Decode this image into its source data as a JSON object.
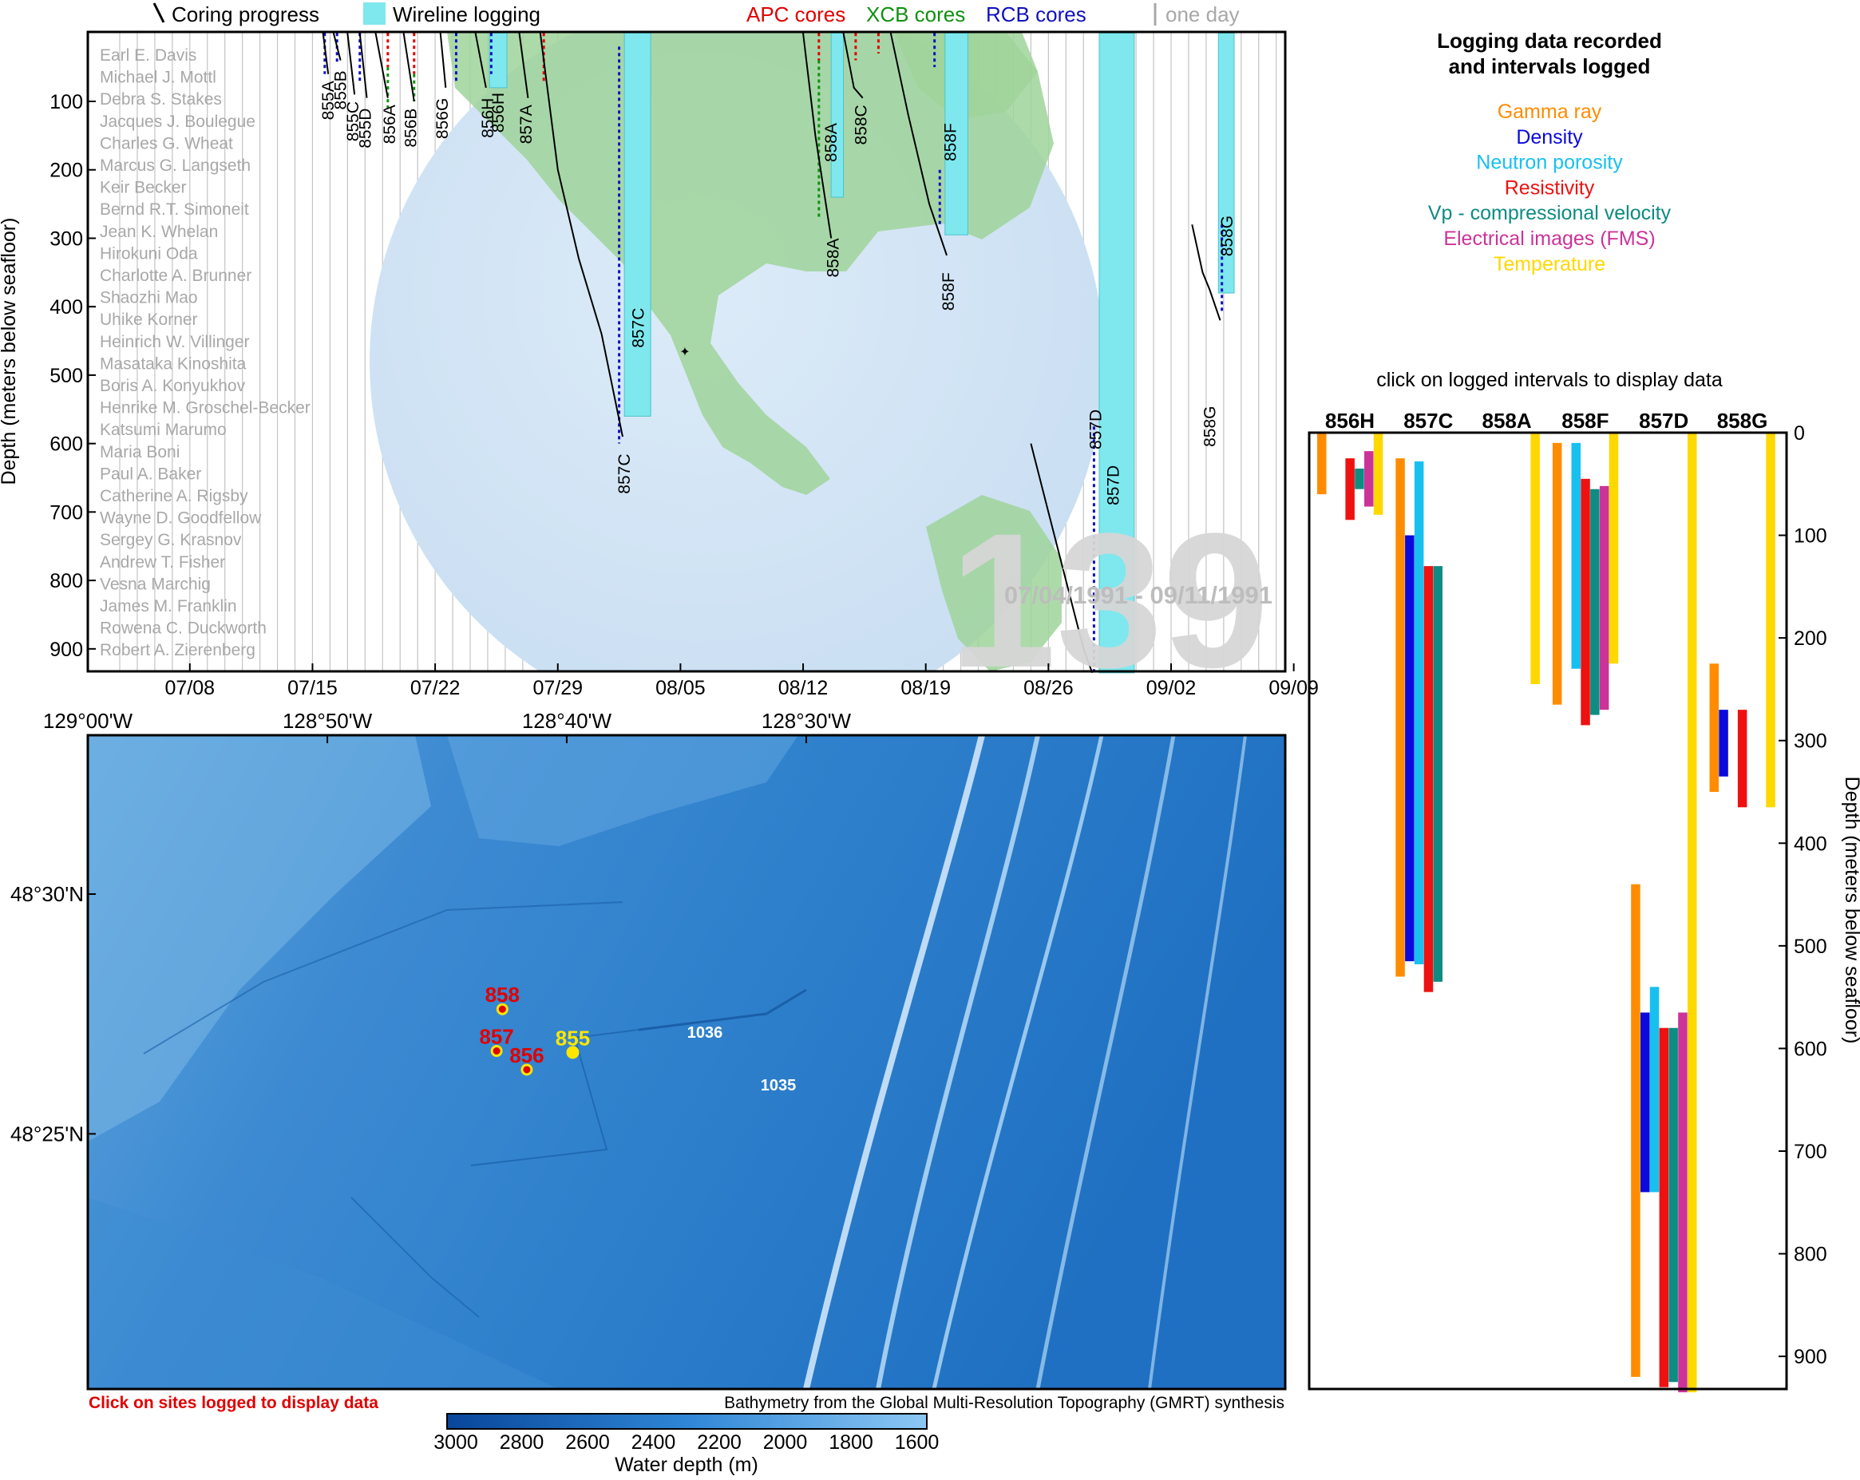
{
  "legend_top": {
    "coring": "Coring progress",
    "wireline": "Wireline logging",
    "apc": "APC cores",
    "xcb": "XCB cores",
    "rcb": "RCB cores",
    "one_day": "one day",
    "colors": {
      "apc": "#e00000",
      "xcb": "#109010",
      "rcb": "#1010c0",
      "wireline": "#7ee8ee",
      "one_day": "#a8a8a8"
    }
  },
  "timeline": {
    "ylabel": "Depth (meters below seafloor)",
    "y_ticks": [
      "100",
      "200",
      "300",
      "400",
      "500",
      "600",
      "700",
      "800",
      "900"
    ],
    "x_ticks": [
      "07/08",
      "07/15",
      "07/22",
      "07/29",
      "08/05",
      "08/12",
      "08/19",
      "08/26",
      "09/02",
      "09/09"
    ],
    "expedition_number": "139",
    "date_range": "07/04/1991 - 09/11/1991",
    "scientists": [
      "Earl E. Davis",
      "Michael J. Mottl",
      "Debra S. Stakes",
      "Jacques J. Boulegue",
      "Charles G. Wheat",
      "Marcus G. Langseth",
      "Keir Becker",
      "Bernd R.T. Simoneit",
      "Jean K. Whelan",
      "Hirokuni Oda",
      "Charlotte A. Brunner",
      "Shaozhi Mao",
      "Uhike Korner",
      "Heinrich W. Villinger",
      "Masataka Kinoshita",
      "Boris A. Konyukhov",
      "Henrike M. Groschel-Becker",
      "Katsumi Marumo",
      "Maria Boni",
      "Paul A. Baker",
      "Catherine A. Rigsby",
      "Wayne D. Goodfellow",
      "Sergey G. Krasnov",
      "Andrew T. Fisher",
      "Vesna Marchig",
      "James M. Franklin",
      "Rowena C. Duckworth",
      "Robert A. Zierenberg"
    ],
    "hole_labels": [
      {
        "name": "855A",
        "day": 11.9,
        "depth": 70
      },
      {
        "name": "855B",
        "day": 12.6,
        "depth": 55
      },
      {
        "name": "855C",
        "day": 13.3,
        "depth": 100
      },
      {
        "name": "855D",
        "day": 14.0,
        "depth": 110
      },
      {
        "name": "856A",
        "day": 15.4,
        "depth": 105
      },
      {
        "name": "856B",
        "day": 16.6,
        "depth": 110
      },
      {
        "name": "856G",
        "day": 18.4,
        "depth": 95
      },
      {
        "name": "856H",
        "day": 21.0,
        "depth": 95
      },
      {
        "name": "857A",
        "day": 23.2,
        "depth": 105
      },
      {
        "name": "857C",
        "day": 28.8,
        "depth": 615
      },
      {
        "name": "858A",
        "day": 40.7,
        "depth": 300
      },
      {
        "name": "858C",
        "day": 42.3,
        "depth": 105
      },
      {
        "name": "858F",
        "day": 47.3,
        "depth": 350
      },
      {
        "name": "857D",
        "day": 55.7,
        "depth": 550
      },
      {
        "name": "858G",
        "day": 62.2,
        "depth": 545
      }
    ],
    "wireline_labels": [
      {
        "name": "856H",
        "day": 21.6,
        "depth": 5
      },
      {
        "name": "857C",
        "day": 29.6,
        "depth": 320
      },
      {
        "name": "858A",
        "day": 40.6,
        "depth": 50
      },
      {
        "name": "858F",
        "day": 47.4,
        "depth": 50
      },
      {
        "name": "857D",
        "day": 56.7,
        "depth": 550
      },
      {
        "name": "858G",
        "day": 63.2,
        "depth": 185
      }
    ]
  },
  "map": {
    "lon_labels": [
      "129°00'W",
      "128°50'W",
      "128°40'W",
      "128°30'W"
    ],
    "lat_labels": [
      "48°30'N",
      "48°25'N"
    ],
    "sites": [
      {
        "name": "858",
        "lon": -128.7115,
        "lat": 48.46,
        "logged": true
      },
      {
        "name": "857",
        "lon": -128.7155,
        "lat": 48.4455,
        "logged": true
      },
      {
        "name": "856",
        "lon": -128.6945,
        "lat": 48.439,
        "logged": true
      },
      {
        "name": "855",
        "lon": -128.6625,
        "lat": 48.445,
        "logged": false
      }
    ],
    "small_labels": [
      "1036",
      "1035"
    ],
    "click_note": "Click on sites logged to display data",
    "credit": "Bathymetry from the Global Multi-Resolution Topography (GMRT) synthesis",
    "colorbar": {
      "ticks": [
        "3000",
        "2800",
        "2600",
        "2400",
        "2200",
        "2000",
        "1800",
        "1600"
      ],
      "label": "Water depth (m)"
    }
  },
  "log_legend": {
    "title_line1": "Logging data recorded",
    "title_line2": "and intervals logged",
    "items": [
      {
        "label": "Gamma ray",
        "color": "#ff8c00"
      },
      {
        "label": "Density",
        "color": "#0a0adc"
      },
      {
        "label": "Neutron porosity",
        "color": "#18c0f0"
      },
      {
        "label": "Resistivity",
        "color": "#ee1111"
      },
      {
        "label": "Vp - compressional velocity",
        "color": "#0e8c82"
      },
      {
        "label": "Electrical images (FMS)",
        "color": "#cc3399"
      },
      {
        "label": "Temperature",
        "color": "#ffd800"
      }
    ]
  },
  "chart_data": {
    "type": "bar",
    "title": "click on logged intervals to display data",
    "ylabel": "Depth (meters below seafloor)",
    "ylim": [
      0,
      935
    ],
    "y_ticks": [
      "0",
      "100",
      "200",
      "300",
      "400",
      "500",
      "600",
      "700",
      "800",
      "900"
    ],
    "categories": [
      "856H",
      "857C",
      "858A",
      "858F",
      "857D",
      "858G"
    ],
    "series": [
      {
        "name": "Gamma ray",
        "intervals": [
          [
            0,
            60
          ],
          [
            25,
            530
          ],
          null,
          [
            10,
            265
          ],
          [
            440,
            920
          ],
          [
            225,
            350
          ]
        ]
      },
      {
        "name": "Density",
        "intervals": [
          null,
          [
            100,
            515
          ],
          null,
          null,
          [
            565,
            740
          ],
          [
            270,
            335
          ]
        ]
      },
      {
        "name": "Neutron porosity",
        "intervals": [
          null,
          [
            28,
            518
          ],
          null,
          [
            10,
            230
          ],
          [
            540,
            740
          ],
          null
        ]
      },
      {
        "name": "Resistivity",
        "intervals": [
          [
            25,
            85
          ],
          [
            130,
            545
          ],
          null,
          [
            45,
            285
          ],
          [
            580,
            930
          ],
          [
            270,
            365
          ]
        ]
      },
      {
        "name": "Vp - compressional velocity",
        "intervals": [
          [
            35,
            55
          ],
          [
            130,
            535
          ],
          null,
          [
            55,
            275
          ],
          [
            580,
            925
          ],
          null
        ]
      },
      {
        "name": "Electrical images (FMS)",
        "intervals": [
          [
            18,
            72
          ],
          null,
          null,
          [
            52,
            270
          ],
          [
            565,
            935
          ],
          null
        ]
      },
      {
        "name": "Temperature",
        "intervals": [
          [
            0,
            80
          ],
          null,
          [
            0,
            245
          ],
          [
            0,
            225
          ],
          [
            0,
            935
          ],
          [
            0,
            365
          ]
        ]
      }
    ]
  }
}
